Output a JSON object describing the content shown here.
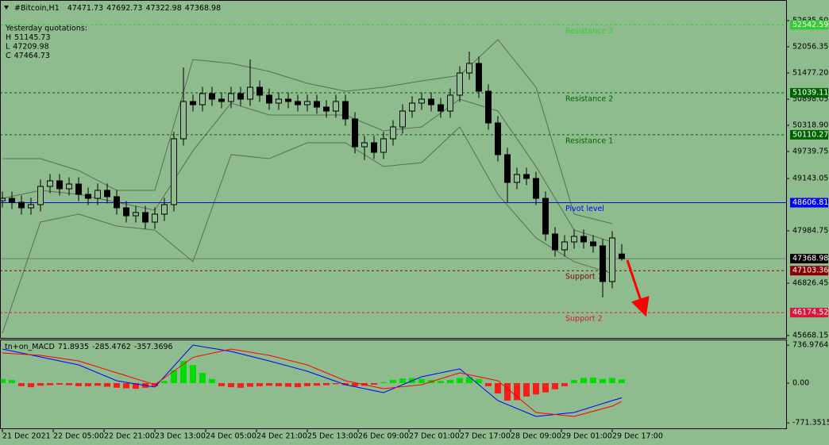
{
  "chart_data": [
    {
      "type": "candlestick",
      "symbol": "#Bitcoin,H1",
      "x": [
        0,
        3,
        6,
        9,
        12,
        15,
        18,
        21,
        24,
        27,
        30,
        33,
        36,
        39,
        42,
        45,
        48,
        51,
        54,
        57,
        60,
        63,
        66,
        69,
        72,
        75,
        78,
        81,
        84,
        87,
        90,
        93,
        96,
        99,
        102,
        105,
        108,
        111,
        114,
        117,
        120,
        123,
        126,
        129,
        132,
        135,
        138,
        141,
        144,
        147,
        150,
        153,
        156,
        159,
        162,
        165,
        168,
        171,
        174,
        177,
        180,
        183,
        186,
        189,
        192,
        195
      ],
      "open": [
        48650,
        48704,
        48617,
        48494,
        48564,
        48968,
        49091,
        48915,
        49020,
        48792,
        48704,
        48880,
        48740,
        48494,
        48318,
        48389,
        48178,
        48354,
        48564,
        50021,
        50846,
        50775,
        51021,
        50898,
        50846,
        51021,
        50898,
        51162,
        50986,
        50811,
        50898,
        50846,
        50775,
        50846,
        50723,
        50635,
        50846,
        50460,
        49845,
        49933,
        49722,
        50021,
        50284,
        50635,
        50811,
        50898,
        50775,
        50635,
        50986,
        51477,
        51688,
        51074,
        50372,
        49670,
        49056,
        49231,
        49143,
        48704,
        47915,
        47564,
        47739,
        47862,
        47739,
        47652,
        46862,
        47471.73
      ],
      "high": [
        48854,
        48854,
        48767,
        48714,
        49118,
        49241,
        49241,
        49170,
        49170,
        48942,
        49030,
        49030,
        48890,
        48644,
        48539,
        48539,
        48504,
        48714,
        50171,
        51600,
        50996,
        51171,
        51171,
        51048,
        51171,
        51171,
        51776,
        51312,
        51136,
        51048,
        51048,
        50996,
        50996,
        50996,
        50873,
        50996,
        50996,
        50610,
        50083,
        50083,
        50171,
        50434,
        50785,
        50961,
        51048,
        51048,
        50925,
        51136,
        51627,
        51951,
        51838,
        51224,
        50522,
        49820,
        49381,
        49381,
        49293,
        48854,
        48065,
        47889,
        48012,
        48012,
        47889,
        47802,
        47977,
        47692.73
      ],
      "low": [
        48500,
        48467,
        48344,
        48344,
        48414,
        48818,
        48765,
        48765,
        48642,
        48554,
        48554,
        48590,
        48344,
        48168,
        48168,
        48028,
        48028,
        48204,
        48414,
        49871,
        50625,
        50625,
        50748,
        50696,
        50696,
        50748,
        50748,
        50836,
        50661,
        50661,
        50696,
        50625,
        50625,
        50573,
        50485,
        50485,
        50310,
        49695,
        49550,
        49572,
        49572,
        49871,
        50134,
        50485,
        50661,
        50625,
        50485,
        50485,
        50836,
        51327,
        50924,
        50222,
        49520,
        48617,
        48906,
        48993,
        48554,
        47765,
        47414,
        47414,
        47589,
        47589,
        47502,
        46511,
        46712,
        47322.98
      ],
      "close": [
        48704,
        48617,
        48494,
        48564,
        48968,
        49091,
        48915,
        49020,
        48792,
        48704,
        48880,
        48740,
        48494,
        48318,
        48389,
        48178,
        48354,
        48564,
        50021,
        50846,
        50775,
        51021,
        50898,
        50846,
        51021,
        50898,
        51162,
        50986,
        50811,
        50898,
        50846,
        50775,
        50846,
        50723,
        50635,
        50846,
        50460,
        49845,
        49933,
        49722,
        50021,
        50284,
        50635,
        50811,
        50898,
        50775,
        50635,
        50986,
        51477,
        51688,
        51074,
        50372,
        49670,
        49056,
        49231,
        49143,
        48704,
        47915,
        47564,
        47739,
        47862,
        47739,
        47652,
        46862,
        47827,
        47368.98
      ],
      "bull_color": "#8fbc8f",
      "bear_color": "#000000",
      "bands": {
        "color": "#5a6e5a",
        "x": [
          0,
          12,
          24,
          36,
          48,
          60,
          72,
          84,
          96,
          108,
          120,
          132,
          144,
          156,
          168,
          180,
          192
        ],
        "upper": [
          49582,
          49582,
          49319,
          48880,
          48880,
          51776,
          51688,
          51513,
          51249,
          51074,
          51162,
          51302,
          51425,
          52215,
          51162,
          48354,
          48143
        ],
        "middle": [
          48704,
          48880,
          48792,
          48617,
          48441,
          49758,
          50811,
          50547,
          50547,
          50547,
          50196,
          50284,
          50898,
          50635,
          49407,
          48003,
          47739
        ],
        "lower": [
          45721,
          48178,
          48354,
          48090,
          48003,
          47301,
          49670,
          49582,
          49933,
          49933,
          49407,
          49494,
          50284,
          48792,
          47827,
          47301,
          47037
        ]
      },
      "xlim": [
        -0.75,
        246.75
      ],
      "ylim": [
        45615,
        53092
      ],
      "yticks": [
        {
          "value": 52635.5,
          "label": "52635.50"
        },
        52056.35,
        {
          "value": 51477.2,
          "label": "51477.20"
        },
        50898.05,
        {
          "value": 50318.9,
          "label": "50318.90"
        },
        49739.75,
        49143.05,
        47984.75,
        46826.45,
        45668.15
      ],
      "levels": [
        {
          "name": "Resistance 3",
          "value": 52542.59,
          "color": "#33cc33",
          "label_color": "#33cc33",
          "dashed": true
        },
        {
          "name": "Resistance 2",
          "value": 51039.11,
          "color": "#006400",
          "label_color": "#006400",
          "dashed": true
        },
        {
          "name": "Resistance 1",
          "value": 50110.27,
          "color": "#006400",
          "label_color": "#006400",
          "dashed": true
        },
        {
          "name": "Pivot level",
          "value": 48606.81,
          "color": "#0000ff",
          "label_color": "#0000ff",
          "dashed": false
        },
        {
          "name": "Support 1",
          "value": 47103.36,
          "color": "#8b0000",
          "label_color": "#8b0000",
          "dashed": true
        },
        {
          "name": "Support 2",
          "value": 46174.52,
          "color": "#dc143c",
          "label_color": "#dc143c",
          "dashed": true
        }
      ],
      "yesterday": {
        "title": "Yesterday quotations:",
        "items": [
          {
            "label": "H",
            "value": 51145.73
          },
          {
            "label": "L",
            "value": 47209.98
          },
          {
            "label": "C",
            "value": 47464.73
          }
        ]
      }
    },
    {
      "type": "macd",
      "title": "tn+on_MACD",
      "x": [
        0,
        3,
        6,
        9,
        12,
        15,
        18,
        21,
        24,
        27,
        30,
        33,
        36,
        39,
        42,
        45,
        48,
        51,
        54,
        57,
        60,
        63,
        66,
        69,
        72,
        75,
        78,
        81,
        84,
        87,
        90,
        93,
        96,
        99,
        102,
        105,
        108,
        111,
        114,
        117,
        120,
        123,
        126,
        129,
        132,
        135,
        138,
        141,
        144,
        147,
        150,
        153,
        156,
        159,
        162,
        165,
        168,
        171,
        174,
        177,
        180,
        183,
        186,
        189,
        192,
        195
      ],
      "histogram": [
        80,
        60,
        -60,
        -80,
        -50,
        -40,
        -30,
        -40,
        -60,
        -60,
        -50,
        -70,
        -90,
        -100,
        -110,
        -90,
        -60,
        40,
        250,
        430,
        350,
        200,
        80,
        -60,
        -80,
        -90,
        -70,
        -60,
        -50,
        -60,
        -70,
        -80,
        -60,
        -50,
        -40,
        -20,
        -40,
        -60,
        -50,
        -30,
        20,
        60,
        90,
        100,
        80,
        60,
        40,
        60,
        100,
        120,
        80,
        -60,
        -200,
        -340,
        -330,
        -260,
        -220,
        -180,
        -120,
        -60,
        60,
        100,
        110,
        80,
        100,
        71.8935
      ],
      "up_color": "#00dd00",
      "down_color": "#ff1a1a",
      "line_x": [
        0,
        12,
        24,
        36,
        48,
        60,
        72,
        84,
        96,
        108,
        120,
        132,
        144,
        156,
        168,
        180,
        192,
        195
      ],
      "macd": [
        662,
        508,
        354,
        46,
        -77,
        739,
        616,
        431,
        231,
        -31,
        -185,
        123,
        277,
        -339,
        -647,
        -570,
        -339,
        -285.4762
      ],
      "signal": [
        585,
        539,
        431,
        200,
        -31,
        500,
        662,
        539,
        354,
        46,
        -108,
        -31,
        200,
        46,
        -570,
        -647,
        -447,
        -357.3696
      ],
      "macd_color": "#0000ff",
      "signal_color": "#ff0000",
      "xlim": [
        -0.75,
        246.75
      ],
      "ylim": [
        -878,
        847
      ],
      "yticks": [
        736.9764,
        {
          "value": 0,
          "label": "0.00"
        },
        -771.3515
      ],
      "xticks": [
        {
          "value": 0,
          "label": "21 Dec 2021"
        },
        {
          "value": 16,
          "label": "22 Dec 05:00"
        },
        {
          "value": 32,
          "label": "22 Dec 21:00"
        },
        {
          "value": 48,
          "label": "23 Dec 13:00"
        },
        {
          "value": 64,
          "label": "24 Dec 05:00"
        },
        {
          "value": 80,
          "label": "24 Dec 21:00"
        },
        {
          "value": 96,
          "label": "25 Dec 13:00"
        },
        {
          "value": 112,
          "label": "26 Dec 09:00"
        },
        {
          "value": 128,
          "label": "27 Dec 01:00"
        },
        {
          "value": 144,
          "label": "27 Dec 17:00"
        },
        {
          "value": 160,
          "label": "28 Dec 09:00"
        },
        {
          "value": 176,
          "label": "29 Dec 01:00"
        },
        {
          "value": 192,
          "label": "29 Dec 17:00"
        }
      ]
    }
  ]
}
